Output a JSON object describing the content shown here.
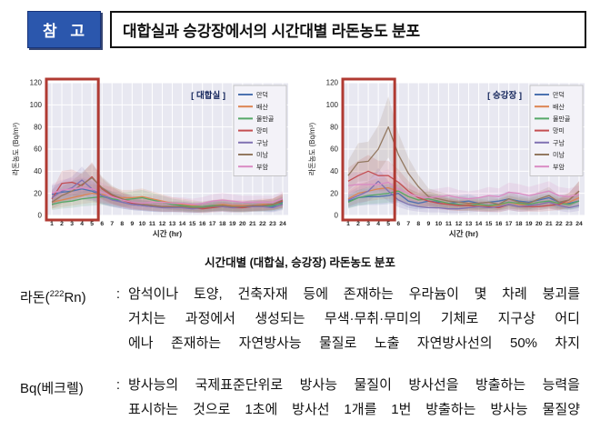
{
  "header": {
    "badge": "참 고",
    "title": "대합실과 승강장에서의 시간대별 라돈농도 분포"
  },
  "caption": "시간대별 (대합실, 승강장) 라돈농도 분포",
  "colors": {
    "badge_blue": "#2b57ad",
    "highlight_red": "#b03a32",
    "plot_background": "#e8e8f1",
    "chart_title_navy": "#15265c"
  },
  "chart_data": [
    {
      "type": "line",
      "title": "[ 대합실 ]",
      "xlabel": "시간 (hr)",
      "ylabel": "라돈농도 (Bq/m³)",
      "x": [
        1,
        2,
        3,
        4,
        5,
        6,
        7,
        8,
        9,
        10,
        11,
        12,
        13,
        14,
        15,
        16,
        17,
        18,
        19,
        20,
        21,
        22,
        23,
        24
      ],
      "ylim": [
        0,
        120
      ],
      "yticks": [
        0,
        20,
        40,
        60,
        80,
        100,
        120
      ],
      "grid": true,
      "legend_position": "upper right",
      "highlight_x_range": [
        1,
        5
      ],
      "highlight_color": "#b03a32",
      "series": [
        {
          "name": "만덕",
          "color": "#4c72b0",
          "values": [
            19,
            21,
            22,
            24,
            22,
            18,
            15,
            12,
            10,
            9,
            8,
            8,
            8,
            8,
            7,
            7,
            8,
            9,
            8,
            8,
            9,
            9,
            8,
            12
          ]
        },
        {
          "name": "배산",
          "color": "#dd8452",
          "values": [
            12,
            14,
            16,
            18,
            20,
            19,
            18,
            16,
            16,
            17,
            15,
            13,
            11,
            10,
            9,
            8,
            9,
            10,
            9,
            9,
            9,
            10,
            10,
            13
          ]
        },
        {
          "name": "물만골",
          "color": "#55a868",
          "values": [
            10,
            12,
            13,
            15,
            16,
            17,
            15,
            14,
            15,
            16,
            14,
            12,
            10,
            9,
            8,
            8,
            9,
            9,
            8,
            7,
            8,
            8,
            9,
            11
          ]
        },
        {
          "name": "망미",
          "color": "#c44e52",
          "values": [
            15,
            29,
            30,
            27,
            35,
            24,
            18,
            14,
            11,
            10,
            9,
            8,
            8,
            7,
            7,
            6,
            7,
            8,
            7,
            7,
            8,
            9,
            10,
            13
          ]
        },
        {
          "name": "구남",
          "color": "#8172b3",
          "values": [
            16,
            22,
            25,
            32,
            24,
            18,
            14,
            12,
            10,
            9,
            8,
            7,
            7,
            7,
            6,
            7,
            8,
            8,
            7,
            8,
            8,
            8,
            7,
            10
          ]
        },
        {
          "name": "미남",
          "color": "#937860",
          "values": [
            12,
            18,
            22,
            28,
            34,
            25,
            19,
            15,
            12,
            10,
            9,
            8,
            8,
            8,
            7,
            7,
            8,
            9,
            8,
            8,
            9,
            9,
            10,
            14
          ]
        },
        {
          "name": "부암",
          "color": "#da8bc3",
          "values": [
            20,
            23,
            24,
            25,
            24,
            21,
            17,
            14,
            12,
            11,
            12,
            12,
            11,
            11,
            10,
            11,
            13,
            14,
            13,
            12,
            12,
            12,
            12,
            15
          ]
        }
      ]
    },
    {
      "type": "line",
      "title": "[ 승강장 ]",
      "xlabel": "시간 (hr)",
      "ylabel": "라돈농도 (Bq/m³)",
      "x": [
        1,
        2,
        3,
        4,
        5,
        6,
        7,
        8,
        9,
        10,
        11,
        12,
        13,
        14,
        15,
        16,
        17,
        18,
        19,
        20,
        21,
        22,
        23,
        24
      ],
      "ylim": [
        0,
        120
      ],
      "yticks": [
        0,
        20,
        40,
        60,
        80,
        100,
        120
      ],
      "grid": true,
      "legend_position": "upper right",
      "highlight_x_range": [
        1,
        5
      ],
      "highlight_color": "#b03a32",
      "series": [
        {
          "name": "만덕",
          "color": "#4c72b0",
          "values": [
            13,
            16,
            17,
            17,
            18,
            20,
            13,
            11,
            13,
            12,
            11,
            12,
            13,
            11,
            12,
            13,
            15,
            13,
            12,
            14,
            16,
            12,
            11,
            13
          ]
        },
        {
          "name": "배산",
          "color": "#dd8452",
          "values": [
            15,
            20,
            22,
            24,
            25,
            22,
            17,
            14,
            15,
            13,
            10,
            9,
            10,
            9,
            8,
            9,
            12,
            10,
            9,
            10,
            12,
            10,
            12,
            16
          ]
        },
        {
          "name": "물만골",
          "color": "#55a868",
          "values": [
            12,
            16,
            18,
            19,
            20,
            22,
            17,
            14,
            15,
            13,
            11,
            10,
            9,
            10,
            9,
            10,
            12,
            11,
            10,
            12,
            13,
            11,
            10,
            13
          ]
        },
        {
          "name": "망미",
          "color": "#c44e52",
          "values": [
            31,
            36,
            40,
            36,
            36,
            30,
            22,
            16,
            13,
            11,
            10,
            9,
            9,
            8,
            8,
            7,
            10,
            8,
            8,
            8,
            9,
            10,
            14,
            22
          ]
        },
        {
          "name": "구남",
          "color": "#8172b3",
          "values": [
            14,
            18,
            22,
            31,
            22,
            14,
            10,
            8,
            7,
            7,
            6,
            6,
            7,
            8,
            7,
            8,
            10,
            8,
            9,
            10,
            12,
            9,
            7,
            9
          ]
        },
        {
          "name": "미남",
          "color": "#937860",
          "values": [
            36,
            48,
            49,
            60,
            80,
            55,
            38,
            26,
            17,
            15,
            13,
            12,
            11,
            11,
            12,
            10,
            15,
            12,
            11,
            15,
            18,
            12,
            14,
            22
          ]
        },
        {
          "name": "부암",
          "color": "#da8bc3",
          "values": [
            27,
            28,
            28,
            28,
            30,
            24,
            20,
            17,
            16,
            17,
            18,
            16,
            15,
            16,
            18,
            17,
            21,
            20,
            18,
            20,
            22,
            18,
            17,
            19
          ]
        }
      ]
    }
  ],
  "definitions": [
    {
      "term_prefix": "라돈(",
      "term_sup": "222",
      "term_suffix": "Rn)",
      "separator": ":",
      "lines": [
        "암석이나 토양, 건축자재 등에 존재하는 우라늄이 몇 차례 붕괴를",
        "거치는 과정에서 생성되는 무색·무취·무미의 기체로 지구상 어디",
        "에나 존재하는 자연방사능 물질로 노출 자연방사선의 50% 차지"
      ]
    },
    {
      "term_prefix": "Bq(베크렐)",
      "term_sup": "",
      "term_suffix": "",
      "separator": ":",
      "lines": [
        "방사능의 국제표준단위로 방사능 물질이 방사선을 방출하는 능력을",
        "표시하는 것으로 1초에 방사선 1개를 1번 방출하는 방사능 물질양"
      ]
    }
  ]
}
